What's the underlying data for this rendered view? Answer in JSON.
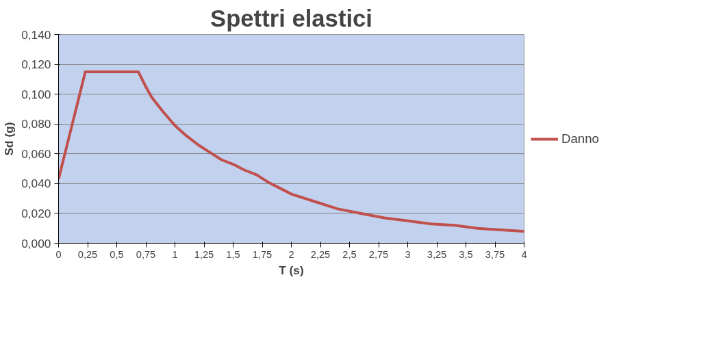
{
  "chart_data": {
    "type": "line",
    "title": "Spettri elastici",
    "xlabel": "T (s)",
    "ylabel": "Sd (g)",
    "x": [
      0,
      0.23,
      0.3,
      0.4,
      0.5,
      0.6,
      0.685,
      0.75,
      0.8,
      0.9,
      1,
      1.1,
      1.2,
      1.3,
      1.4,
      1.5,
      1.6,
      1.7,
      1.8,
      1.9,
      2,
      2.2,
      2.4,
      2.6,
      2.8,
      3,
      3.2,
      3.4,
      3.6,
      3.8,
      4
    ],
    "series": [
      {
        "name": "Danno",
        "color": "#c0504d",
        "values": [
          0.043,
          0.115,
          0.115,
          0.115,
          0.115,
          0.115,
          0.115,
          0.105,
          0.098,
          0.088,
          0.079,
          0.072,
          0.066,
          0.061,
          0.056,
          0.053,
          0.049,
          0.046,
          0.041,
          0.037,
          0.033,
          0.028,
          0.023,
          0.02,
          0.017,
          0.015,
          0.013,
          0.012,
          0.01,
          0.009,
          0.008
        ]
      }
    ],
    "xlim": [
      0,
      4
    ],
    "xticks": [
      0,
      {
        "value": 0.25,
        "label": "0,25"
      },
      {
        "value": 0.5,
        "label": "0,5"
      },
      {
        "value": 0.75,
        "label": "0,75"
      },
      1,
      {
        "value": 1.25,
        "label": "1,25"
      },
      {
        "value": 1.5,
        "label": "1,5"
      },
      {
        "value": 1.75,
        "label": "1,75"
      },
      2,
      {
        "value": 2.25,
        "label": "2,25"
      },
      {
        "value": 2.5,
        "label": "2,5"
      },
      {
        "value": 2.75,
        "label": "2,75"
      },
      3,
      {
        "value": 3.25,
        "label": "3,25"
      },
      {
        "value": 3.5,
        "label": "3,5"
      },
      {
        "value": 3.75,
        "label": "3,75"
      },
      4
    ],
    "ylim": [
      0,
      0.14
    ],
    "yticks": [
      {
        "value": 0,
        "label": "0,000"
      },
      {
        "value": 0.02,
        "label": "0,020"
      },
      {
        "value": 0.04,
        "label": "0,040"
      },
      {
        "value": 0.06,
        "label": "0,060"
      },
      {
        "value": 0.08,
        "label": "0,080"
      },
      {
        "value": 0.1,
        "label": "0,100"
      },
      {
        "value": 0.12,
        "label": "0,120"
      },
      {
        "value": 0.14,
        "label": "0,140"
      }
    ],
    "grid": "y",
    "legend": "right",
    "marker": "none",
    "line_style": "solid"
  }
}
